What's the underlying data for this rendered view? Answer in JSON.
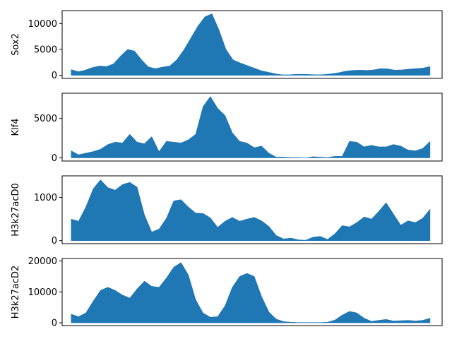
{
  "figure": {
    "background": "#ffffff",
    "fill_color": "#1f77b4"
  },
  "chart_data": [
    {
      "type": "area",
      "ylabel": "Sox2",
      "ylim": [
        -600,
        12500
      ],
      "yticks": [
        0,
        5000,
        10000
      ],
      "ytick_labels": [
        "0",
        "5000",
        "10000"
      ],
      "xlim": [
        -1.5,
        61.5
      ],
      "grid": false,
      "values": [
        1100,
        700,
        1000,
        1500,
        1800,
        1700,
        2200,
        3700,
        5000,
        4700,
        3000,
        1600,
        1300,
        1600,
        1800,
        3000,
        4900,
        7200,
        9500,
        11300,
        11900,
        8800,
        5000,
        3000,
        2400,
        1900,
        1400,
        900,
        600,
        300,
        100,
        100,
        200,
        200,
        150,
        100,
        150,
        300,
        500,
        800,
        950,
        1000,
        950,
        1050,
        1300,
        1250,
        1000,
        1050,
        1200,
        1300,
        1400,
        1700
      ]
    },
    {
      "type": "area",
      "ylabel": "Klf4",
      "ylim": [
        -400,
        8200
      ],
      "yticks": [
        0,
        5000
      ],
      "ytick_labels": [
        "0",
        "5000"
      ],
      "xlim": [
        -1.5,
        61.5
      ],
      "grid": false,
      "values": [
        900,
        400,
        600,
        800,
        1100,
        1700,
        2000,
        1900,
        3000,
        2000,
        1800,
        2700,
        800,
        2100,
        2000,
        1900,
        2300,
        3000,
        6500,
        7800,
        6300,
        5400,
        3200,
        2100,
        1900,
        1300,
        1500,
        600,
        100,
        100,
        50,
        50,
        0,
        150,
        100,
        50,
        200,
        200,
        2100,
        2000,
        1400,
        1600,
        1400,
        1400,
        1700,
        1500,
        1000,
        900,
        1200,
        2100
      ]
    },
    {
      "type": "area",
      "ylabel": "H3k27acD0",
      "ylim": [
        -70,
        1500
      ],
      "yticks": [
        0,
        1000
      ],
      "ytick_labels": [
        "0",
        "1000"
      ],
      "xlim": [
        -1.5,
        61.5
      ],
      "grid": false,
      "values": [
        500,
        450,
        780,
        1200,
        1410,
        1230,
        1170,
        1300,
        1350,
        1240,
        600,
        200,
        270,
        520,
        920,
        950,
        780,
        640,
        630,
        530,
        310,
        450,
        540,
        450,
        500,
        540,
        460,
        330,
        120,
        40,
        60,
        20,
        10,
        80,
        100,
        30,
        160,
        350,
        320,
        420,
        550,
        500,
        680,
        880,
        620,
        360,
        460,
        420,
        520,
        730
      ]
    },
    {
      "type": "area",
      "ylabel": "H3k27acD2",
      "ylim": [
        -900,
        20800
      ],
      "yticks": [
        0,
        10000,
        20000
      ],
      "ytick_labels": [
        "0",
        "10000",
        "20000"
      ],
      "xlim": [
        -1.5,
        61.5
      ],
      "grid": false,
      "values": [
        2800,
        2000,
        3200,
        7000,
        10500,
        11500,
        10500,
        9000,
        8000,
        11000,
        13500,
        11800,
        11500,
        14500,
        18000,
        19500,
        15500,
        7500,
        3200,
        1800,
        2000,
        5500,
        11500,
        15000,
        16000,
        15000,
        8500,
        3500,
        1200,
        400,
        200,
        100,
        100,
        100,
        100,
        200,
        900,
        2500,
        3700,
        3200,
        1500,
        500,
        800,
        1100,
        600,
        700,
        800,
        600,
        800,
        1500
      ]
    }
  ]
}
